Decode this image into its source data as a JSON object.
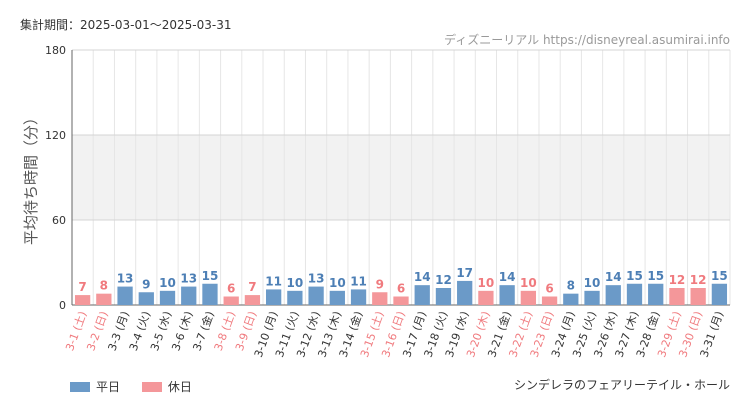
{
  "header": {
    "period": "集計期間：2025-03-01～2025-03-31",
    "site": "ディズニーリアル https://disneyreal.asumirai.info"
  },
  "footer": {
    "attraction": "シンデレラのフェアリーテイル・ホール"
  },
  "legend": {
    "weekday_label": "平日",
    "holiday_label": "休日",
    "weekday_color": "#6b9ac8",
    "holiday_color": "#f4979a"
  },
  "chart_data": {
    "type": "bar",
    "ylabel": "平均待ち時間（分）",
    "ylim": [
      0,
      180
    ],
    "yticks": [
      0,
      60,
      120,
      180
    ],
    "grid": true,
    "legend_position": "bottom-left",
    "categories": [
      "3-1 (土)",
      "3-2 (日)",
      "3-3 (月)",
      "3-4 (火)",
      "3-5 (水)",
      "3-6 (木)",
      "3-7 (金)",
      "3-8 (土)",
      "3-9 (日)",
      "3-10 (月)",
      "3-11 (火)",
      "3-12 (水)",
      "3-13 (木)",
      "3-14 (金)",
      "3-15 (土)",
      "3-16 (日)",
      "3-17 (月)",
      "3-18 (火)",
      "3-19 (水)",
      "3-20 (木)",
      "3-21 (金)",
      "3-22 (土)",
      "3-23 (日)",
      "3-24 (月)",
      "3-25 (火)",
      "3-26 (水)",
      "3-27 (木)",
      "3-28 (金)",
      "3-29 (土)",
      "3-30 (日)",
      "3-31 (月)"
    ],
    "values": [
      7,
      8,
      13,
      9,
      10,
      13,
      15,
      6,
      7,
      11,
      10,
      13,
      10,
      11,
      9,
      6,
      14,
      12,
      17,
      10,
      14,
      10,
      6,
      8,
      10,
      14,
      15,
      15,
      12,
      12,
      15
    ],
    "day_type": [
      "holiday",
      "holiday",
      "weekday",
      "weekday",
      "weekday",
      "weekday",
      "weekday",
      "holiday",
      "holiday",
      "weekday",
      "weekday",
      "weekday",
      "weekday",
      "weekday",
      "holiday",
      "holiday",
      "weekday",
      "weekday",
      "weekday",
      "holiday",
      "weekday",
      "holiday",
      "holiday",
      "weekday",
      "weekday",
      "weekday",
      "weekday",
      "weekday",
      "holiday",
      "holiday",
      "weekday"
    ]
  }
}
